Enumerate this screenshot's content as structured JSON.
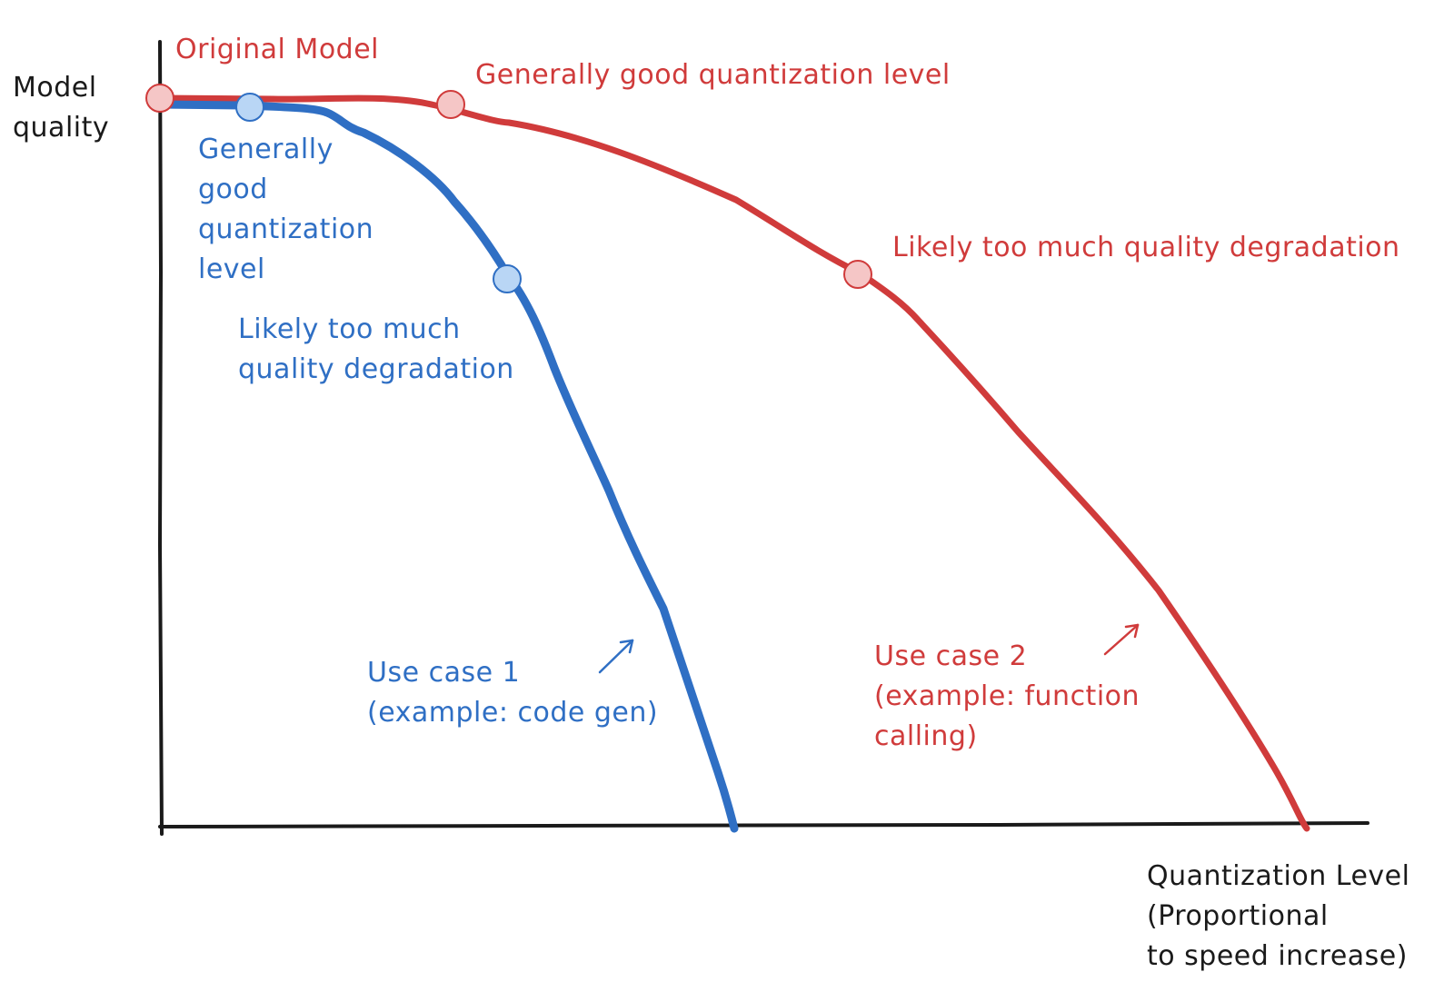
{
  "colors": {
    "red": "#d03b3b",
    "red_point_fill": "#f5c6c6",
    "blue": "#2f6fc4",
    "blue_point_fill": "#b9d6f5",
    "axis": "#1a1a1a"
  },
  "axes": {
    "y_label": [
      "Model",
      "quality"
    ],
    "x_label": [
      "Quantization Level",
      "(Proportional",
      "to speed increase)"
    ]
  },
  "use_case_1": {
    "label": [
      "Use case 1",
      "(example: code gen)"
    ],
    "good_point_label": [
      "Generally",
      "good",
      "quantization",
      "level"
    ],
    "bad_point_label": [
      "Likely too much",
      "quality degradation"
    ]
  },
  "use_case_2": {
    "original_label": "Original Model",
    "good_point_label": "Generally good quantization level",
    "bad_point_label": "Likely too much quality degradation",
    "label": [
      "Use case 2",
      "(example: function",
      "calling)"
    ]
  }
}
